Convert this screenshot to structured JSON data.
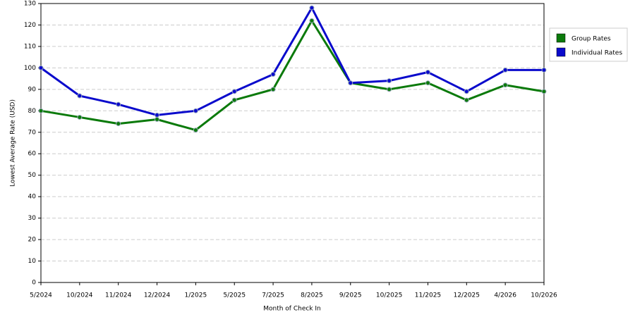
{
  "chart_data": {
    "type": "line",
    "x_label": "Month of Check In",
    "y_label": "Lowest Average Rate (USD)",
    "categories": [
      "5/2024",
      "10/2024",
      "11/2024",
      "12/2024",
      "1/2025",
      "5/2025",
      "7/2025",
      "8/2025",
      "9/2025",
      "10/2025",
      "11/2025",
      "12/2025",
      "4/2026",
      "10/2026"
    ],
    "series": [
      {
        "name": "Group Rates",
        "color": "#0b7a0b",
        "values": [
          80,
          77,
          74,
          76,
          71,
          85,
          90,
          122,
          93,
          90,
          93,
          85,
          92,
          89
        ]
      },
      {
        "name": "Individual Rates",
        "color": "#0a0acc",
        "values": [
          100,
          87,
          83,
          78,
          80,
          89,
          97,
          128,
          93,
          94,
          98,
          89,
          99,
          99
        ]
      }
    ],
    "ylim": [
      0,
      130
    ],
    "yticks": [
      0,
      10,
      20,
      30,
      40,
      50,
      60,
      70,
      80,
      90,
      100,
      110,
      120,
      130
    ],
    "grid": true,
    "legend": "right"
  }
}
